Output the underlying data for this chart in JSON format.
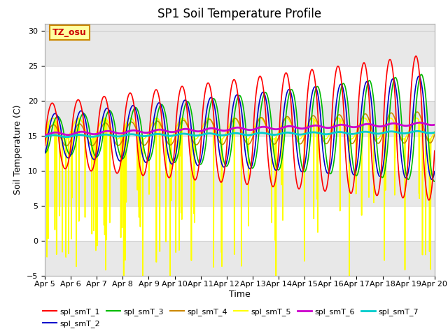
{
  "title": "SP1 Soil Temperature Profile",
  "xlabel": "Time",
  "ylabel": "Soil Temperature (C)",
  "ylim": [
    -5,
    31
  ],
  "xlim": [
    0,
    15
  ],
  "annotation": "TZ_osu",
  "xtick_labels": [
    "Apr 5",
    "Apr 6",
    "Apr 7",
    "Apr 8",
    "Apr 9",
    "Apr 10",
    "Apr 11",
    "Apr 12",
    "Apr 13",
    "Apr 14",
    "Apr 15",
    "Apr 16",
    "Apr 17",
    "Apr 18",
    "Apr 19",
    "Apr 20"
  ],
  "series_labels": [
    "spl_smT_1",
    "spl_smT_2",
    "spl_smT_3",
    "spl_smT_4",
    "spl_smT_5",
    "spl_smT_6",
    "spl_smT_7"
  ],
  "series_colors": [
    "#ff0000",
    "#0000cc",
    "#00bb00",
    "#cc8800",
    "#ffff00",
    "#cc00cc",
    "#00cccc"
  ],
  "series_linewidths": [
    1.2,
    1.2,
    1.2,
    1.2,
    1.2,
    2.0,
    2.0
  ],
  "background_color": "#e8e8e8",
  "band_color": "#d4d4d4",
  "title_fontsize": 12,
  "label_fontsize": 9,
  "tick_fontsize": 8
}
